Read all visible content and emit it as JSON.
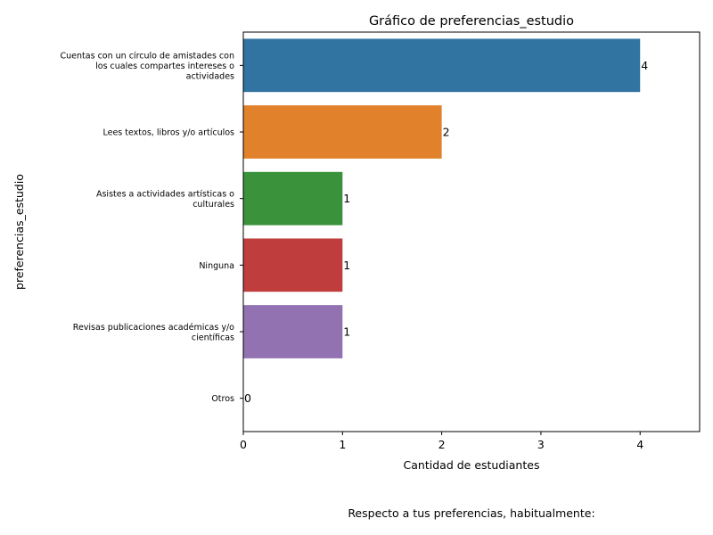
{
  "chart_data": {
    "type": "bar",
    "orientation": "horizontal",
    "title": "Gráfico de preferencias_estudio",
    "xlabel": "Cantidad de estudiantes",
    "ylabel": "preferencias_estudio",
    "caption": "Respecto a tus preferencias, habitualmente:",
    "xlim": [
      0,
      4.6
    ],
    "x_ticks": [
      0,
      1,
      2,
      3,
      4
    ],
    "grid": false,
    "categories": [
      [
        "Cuentas con un círculo de amistades con",
        "los cuales compartes intereses o",
        "actividades"
      ],
      [
        "Lees textos, libros y/o artículos"
      ],
      [
        "Asistes a actividades artísticas o",
        "culturales"
      ],
      [
        "Ninguna"
      ],
      [
        "Revisas publicaciones académicas y/o",
        "científicas"
      ],
      [
        "Otros"
      ]
    ],
    "values": [
      4,
      2,
      1,
      1,
      1,
      0
    ],
    "colors": [
      "#3274a1",
      "#e1812c",
      "#3a923a",
      "#c03d3e",
      "#9372b2",
      "#845b53"
    ]
  }
}
